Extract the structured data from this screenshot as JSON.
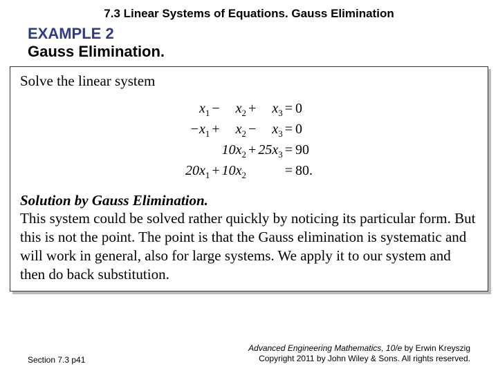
{
  "header": {
    "chapter_title": "7.3 Linear Systems of Equations.  Gauss Elimination"
  },
  "example": {
    "label": "EXAMPLE 2",
    "method": "Gauss Elimination."
  },
  "content": {
    "prompt": "Solve the linear system",
    "equations": {
      "rows": [
        {
          "c1": "x",
          "s1": "1",
          "op1": "−",
          "c2": "x",
          "s2": "2",
          "op2": "+",
          "c3": "x",
          "s3": "3",
          "eq": "=",
          "rhs": "0"
        },
        {
          "c1": "−x",
          "s1": "1",
          "op1": "+",
          "c2": "x",
          "s2": "2",
          "op2": "−",
          "c3": "x",
          "s3": "3",
          "eq": "=",
          "rhs": "0"
        },
        {
          "c1": "",
          "s1": "",
          "op1": "",
          "c2": "10x",
          "s2": "2",
          "op2": "+",
          "c3": "25x",
          "s3": "3",
          "eq": "=",
          "rhs": "90"
        },
        {
          "c1": "20x",
          "s1": "1",
          "op1": "+",
          "c2": "10x",
          "s2": "2",
          "op2": "",
          "c3": "",
          "s3": "",
          "eq": "=",
          "rhs": "80."
        }
      ]
    },
    "solution_heading": "Solution by Gauss Elimination.",
    "solution_body": "This system could be solved rather quickly by noticing its particular form. But this is not the point. The point is that the Gauss elimination is systematic and will work in general, also for large systems. We apply it to our system and then do back substitution."
  },
  "footer": {
    "section": "Section 7.3  p41",
    "book_title": "Advanced Engineering Mathematics, 10/e",
    "author": " by Erwin Kreyszig",
    "copyright": "Copyright 2011 by John Wiley & Sons. All rights reserved."
  }
}
